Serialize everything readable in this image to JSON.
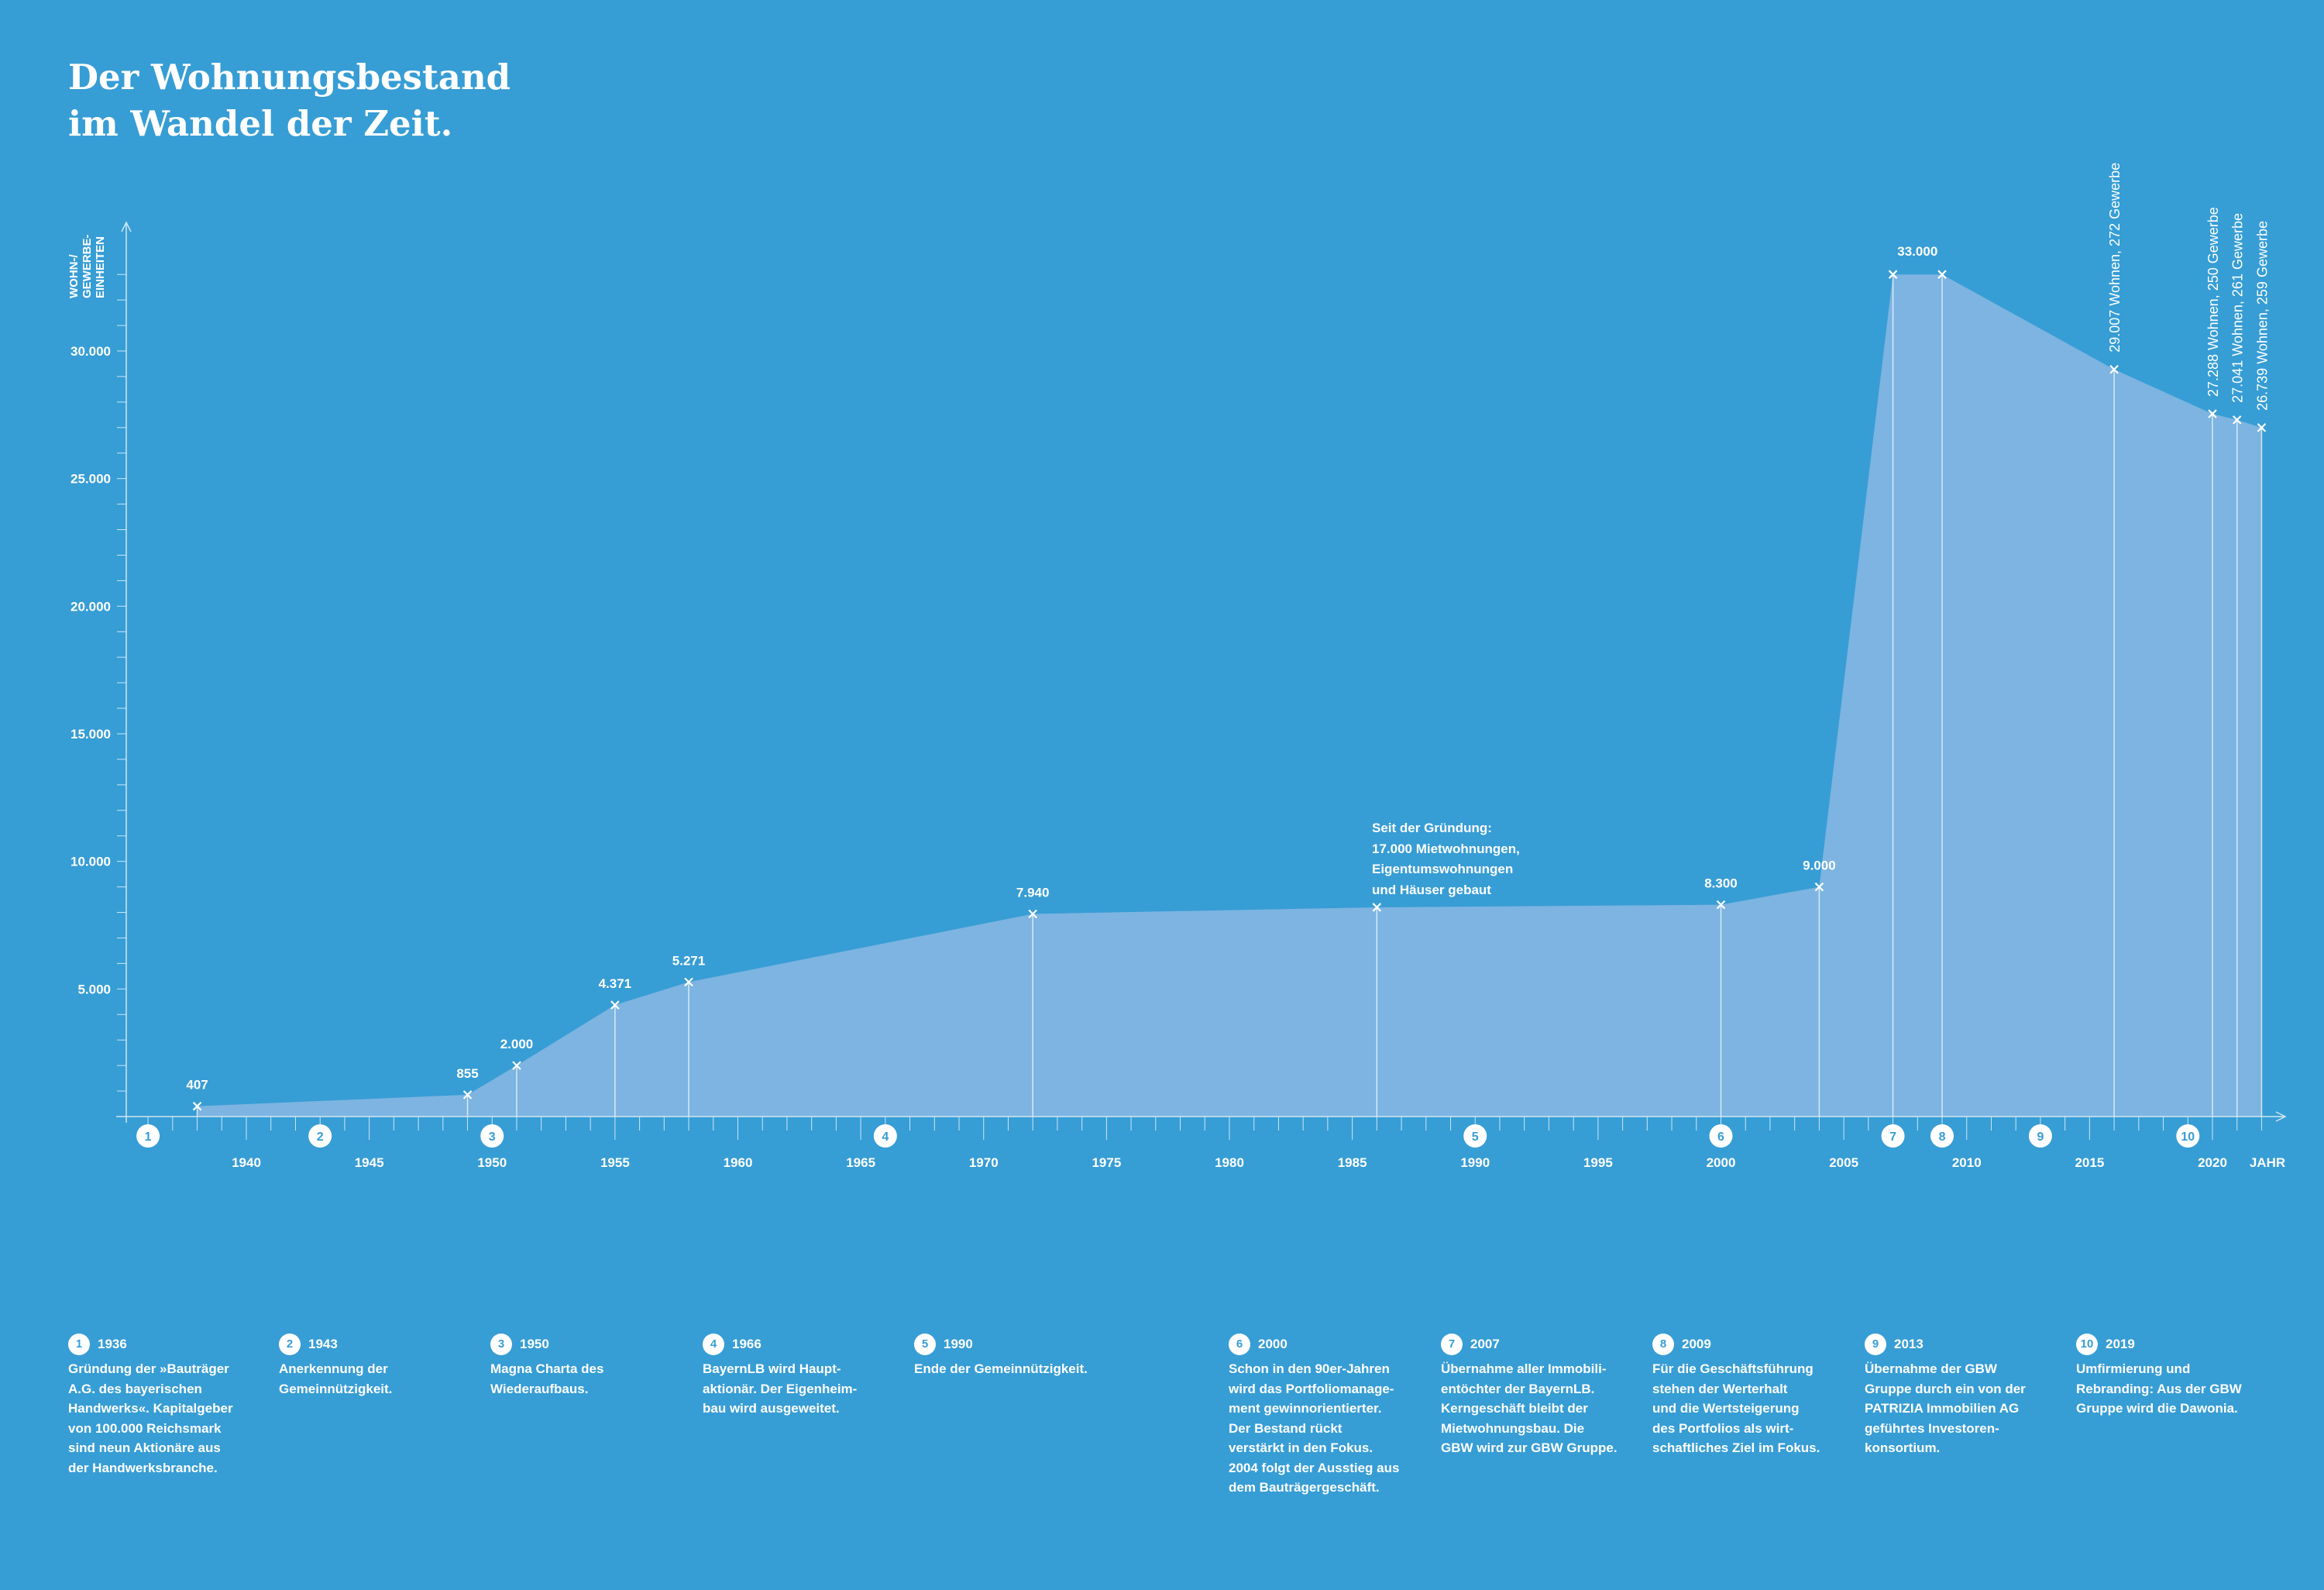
{
  "title": "Der Wohnungsbestand\nim Wandel der Zeit.",
  "colors": {
    "background": "#379dd5",
    "area": "#7db4e1",
    "lines": "#ffffff"
  },
  "chart_data": {
    "type": "area",
    "ylabel": [
      "WOHN-/",
      "GEWERBE-",
      "EINHEITEN"
    ],
    "xlabel": "JAHR",
    "xlim": [
      1935,
      2023
    ],
    "ylim": [
      0,
      34000
    ],
    "yticks": [
      5000,
      10000,
      15000,
      20000,
      25000,
      30000
    ],
    "ytick_labels": [
      "5.000",
      "10.000",
      "15.000",
      "20.000",
      "25.000",
      "30.000"
    ],
    "xticks": [
      1940,
      1945,
      1950,
      1955,
      1960,
      1965,
      1970,
      1975,
      1980,
      1985,
      1990,
      1995,
      2000,
      2005,
      2010,
      2015,
      2020
    ],
    "grid": false,
    "points": [
      {
        "x": 1938,
        "y": 407,
        "label": "407"
      },
      {
        "x": 1949,
        "y": 855,
        "label": "855"
      },
      {
        "x": 1951,
        "y": 2000,
        "label": "2.000"
      },
      {
        "x": 1955,
        "y": 4371,
        "label": "4.371"
      },
      {
        "x": 1958,
        "y": 5271,
        "label": "5.271"
      },
      {
        "x": 1972,
        "y": 7940,
        "label": "7.940"
      },
      {
        "x": 1986,
        "y": 8200,
        "label": ""
      },
      {
        "x": 2000,
        "y": 8300,
        "label": "8.300"
      },
      {
        "x": 2004,
        "y": 9000,
        "label": "9.000"
      },
      {
        "x": 2007,
        "y": 33000,
        "label": ""
      },
      {
        "x": 2009,
        "y": 33000,
        "label": ""
      },
      {
        "x": 2016,
        "y": 29279,
        "label": "29.007 Wohnen, 272 Gewerbe",
        "rotated": true
      },
      {
        "x": 2020,
        "y": 27538,
        "label": "27.288 Wohnen, 250 Gewerbe",
        "rotated": true
      },
      {
        "x": 2021,
        "y": 27302,
        "label": "27.041 Wohnen, 261 Gewerbe",
        "rotated": true
      },
      {
        "x": 2022,
        "y": 26998,
        "label": "26.739 Wohnen, 259 Gewerbe",
        "rotated": true
      }
    ],
    "plateau_label": {
      "x": 2008,
      "y": 33000,
      "label": "33.000"
    },
    "annotation": "Seit der Gründung:\n17.000 Mietwohnungen,\nEigentumswohnungen\nund Häuser gebaut",
    "milestones": [
      {
        "n": "1",
        "year": 1936
      },
      {
        "n": "2",
        "year": 1943
      },
      {
        "n": "3",
        "year": 1950
      },
      {
        "n": "4",
        "year": 1966
      },
      {
        "n": "5",
        "year": 1990
      },
      {
        "n": "6",
        "year": 2000
      },
      {
        "n": "7",
        "year": 2007
      },
      {
        "n": "8",
        "year": 2009
      },
      {
        "n": "9",
        "year": 2013
      },
      {
        "n": "10",
        "year": 2019
      }
    ]
  },
  "notes": [
    {
      "n": "1",
      "year": "1936",
      "text": "Gründung der »Bauträger\nA.G. des bayerischen\nHandwerks«. Kapitalgeber\nvon 100.000 Reichsmark\nsind neun Aktionäre aus\nder Handwerksbranche."
    },
    {
      "n": "2",
      "year": "1943",
      "text": "Anerkennung der\nGemeinnützigkeit."
    },
    {
      "n": "3",
      "year": "1950",
      "text": "Magna Charta des\nWiederaufbaus."
    },
    {
      "n": "4",
      "year": "1966",
      "text": "BayernLB wird Haupt-\naktionär. Der Eigenheim-\nbau wird ausgeweitet."
    },
    {
      "n": "5",
      "year": "1990",
      "text": "Ende der Gemeinnützigkeit."
    },
    {
      "n": "6",
      "year": "2000",
      "text": "Schon in den 90er-Jahren\nwird das Portfoliomanage-\nment gewinnorientierter.\nDer Bestand rückt\nverstärkt in den Fokus.\n2004 folgt der Ausstieg aus\ndem Bauträgergeschäft."
    },
    {
      "n": "7",
      "year": "2007",
      "text": "Übernahme aller Immobili-\nentöchter der BayernLB.\nKerngeschäft bleibt der\nMietwohnungsbau. Die\nGBW wird zur GBW Gruppe."
    },
    {
      "n": "8",
      "year": "2009",
      "text": "Für die Geschäftsführung\nstehen der Werterhalt\nund die Wertsteigerung\ndes Portfolios als wirt-\nschaftliches Ziel im Fokus."
    },
    {
      "n": "9",
      "year": "2013",
      "text": "Übernahme der GBW\nGruppe durch ein von der\nPATRIZIA Immobilien AG\ngeführtes Investoren-\nkonsortium."
    },
    {
      "n": "10",
      "year": "2019",
      "text": "Umfirmierung und\nRebranding: Aus der GBW\nGruppe wird die Dawonia."
    }
  ]
}
